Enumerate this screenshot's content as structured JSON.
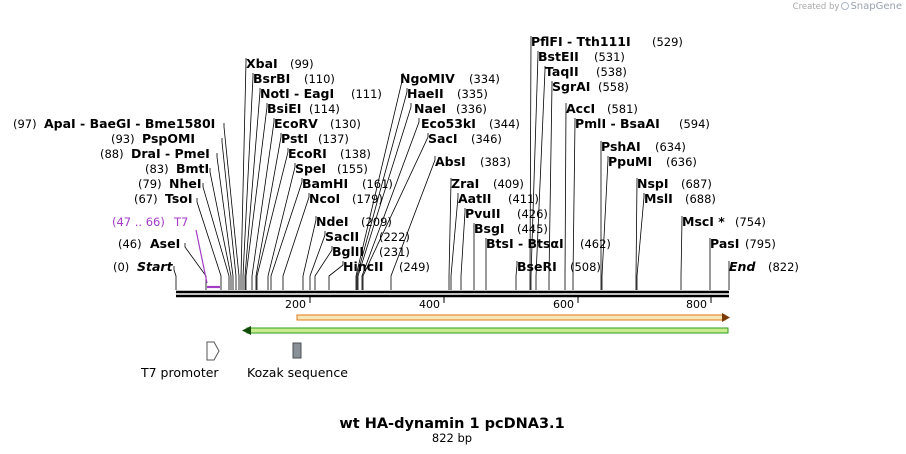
{
  "credit": {
    "prefix": "Created by",
    "brand": "SnapGene"
  },
  "map": {
    "title": "wt HA-dynamin 1 pcDNA3.1",
    "length": "822 bp",
    "start_label": "Start",
    "start_pos": "(0)",
    "end_label": "End",
    "end_pos": "(822)",
    "ticks": [
      "200",
      "400",
      "600",
      "800"
    ],
    "t7_site": {
      "label": "T7",
      "pos": "(47 .. 66)",
      "color": "#a53bc7"
    },
    "enzymes_left": [
      {
        "name": "ApaI  -  BaeGI  -  Bme1580I",
        "pos": "(97)"
      },
      {
        "name": "PspOMI",
        "pos": "(93)"
      },
      {
        "name": "DraI  -  PmeI",
        "pos": "(88)"
      },
      {
        "name": "BmtI",
        "pos": "(83)"
      },
      {
        "name": "NheI",
        "pos": "(79)"
      },
      {
        "name": "TsoI",
        "pos": "(67)"
      },
      {
        "name": "AseI",
        "pos": "(46)"
      }
    ],
    "enzymes_right": [
      {
        "name": "XbaI",
        "pos": "(99)"
      },
      {
        "name": "BsrBI",
        "pos": "(110)"
      },
      {
        "name": "NotI  -  EagI",
        "pos": "(111)"
      },
      {
        "name": "BsiEI",
        "pos": "(114)"
      },
      {
        "name": "EcoRV",
        "pos": "(130)"
      },
      {
        "name": "PstI",
        "pos": "(137)"
      },
      {
        "name": "EcoRI",
        "pos": "(138)"
      },
      {
        "name": "SpeI",
        "pos": "(155)"
      },
      {
        "name": "BamHI",
        "pos": "(161)"
      },
      {
        "name": "NcoI",
        "pos": "(179)"
      },
      {
        "name": "NdeI",
        "pos": "(209)"
      },
      {
        "name": "SacII",
        "pos": "(222)"
      },
      {
        "name": "BglII",
        "pos": "(231)"
      },
      {
        "name": "HincII",
        "pos": "(249)"
      },
      {
        "name": "NgoMIV",
        "pos": "(334)"
      },
      {
        "name": "HaeII",
        "pos": "(335)"
      },
      {
        "name": "NaeI",
        "pos": "(336)"
      },
      {
        "name": "Eco53kI",
        "pos": "(344)"
      },
      {
        "name": "SacI",
        "pos": "(346)"
      },
      {
        "name": "AbsI",
        "pos": "(383)"
      },
      {
        "name": "ZraI",
        "pos": "(409)"
      },
      {
        "name": "AatII",
        "pos": "(411)"
      },
      {
        "name": "PvuII",
        "pos": "(426)"
      },
      {
        "name": "BsgI",
        "pos": "(445)"
      },
      {
        "name": "BtsI  -  BtsαI",
        "pos": "(462)"
      },
      {
        "name": "BseRI",
        "pos": "(508)"
      },
      {
        "name": "PflFI  -  Tth111I",
        "pos": "(529)"
      },
      {
        "name": "BstEII",
        "pos": "(531)"
      },
      {
        "name": "TaqII",
        "pos": "(538)"
      },
      {
        "name": "SgrAI",
        "pos": "(558)"
      },
      {
        "name": "AccI",
        "pos": "(581)"
      },
      {
        "name": "PmlI  -  BsaAI",
        "pos": "(594)"
      },
      {
        "name": "PshAI",
        "pos": "(634)"
      },
      {
        "name": "PpuMI",
        "pos": "(636)"
      },
      {
        "name": "NspI",
        "pos": "(687)"
      },
      {
        "name": "MslI",
        "pos": "(688)"
      },
      {
        "name": "MscI *",
        "pos": "(754)"
      },
      {
        "name": "PasI",
        "pos": "(795)"
      }
    ],
    "features": [
      {
        "name": "T7 promoter"
      },
      {
        "name": "Kozak sequence"
      }
    ],
    "colors": {
      "orange_feature": "#e07a1a",
      "orange_fill": "#f7e6b8",
      "green_feature": "#2e9c1d",
      "green_fill": "#c9ec8f",
      "kozak_box": "#8a9098"
    }
  }
}
